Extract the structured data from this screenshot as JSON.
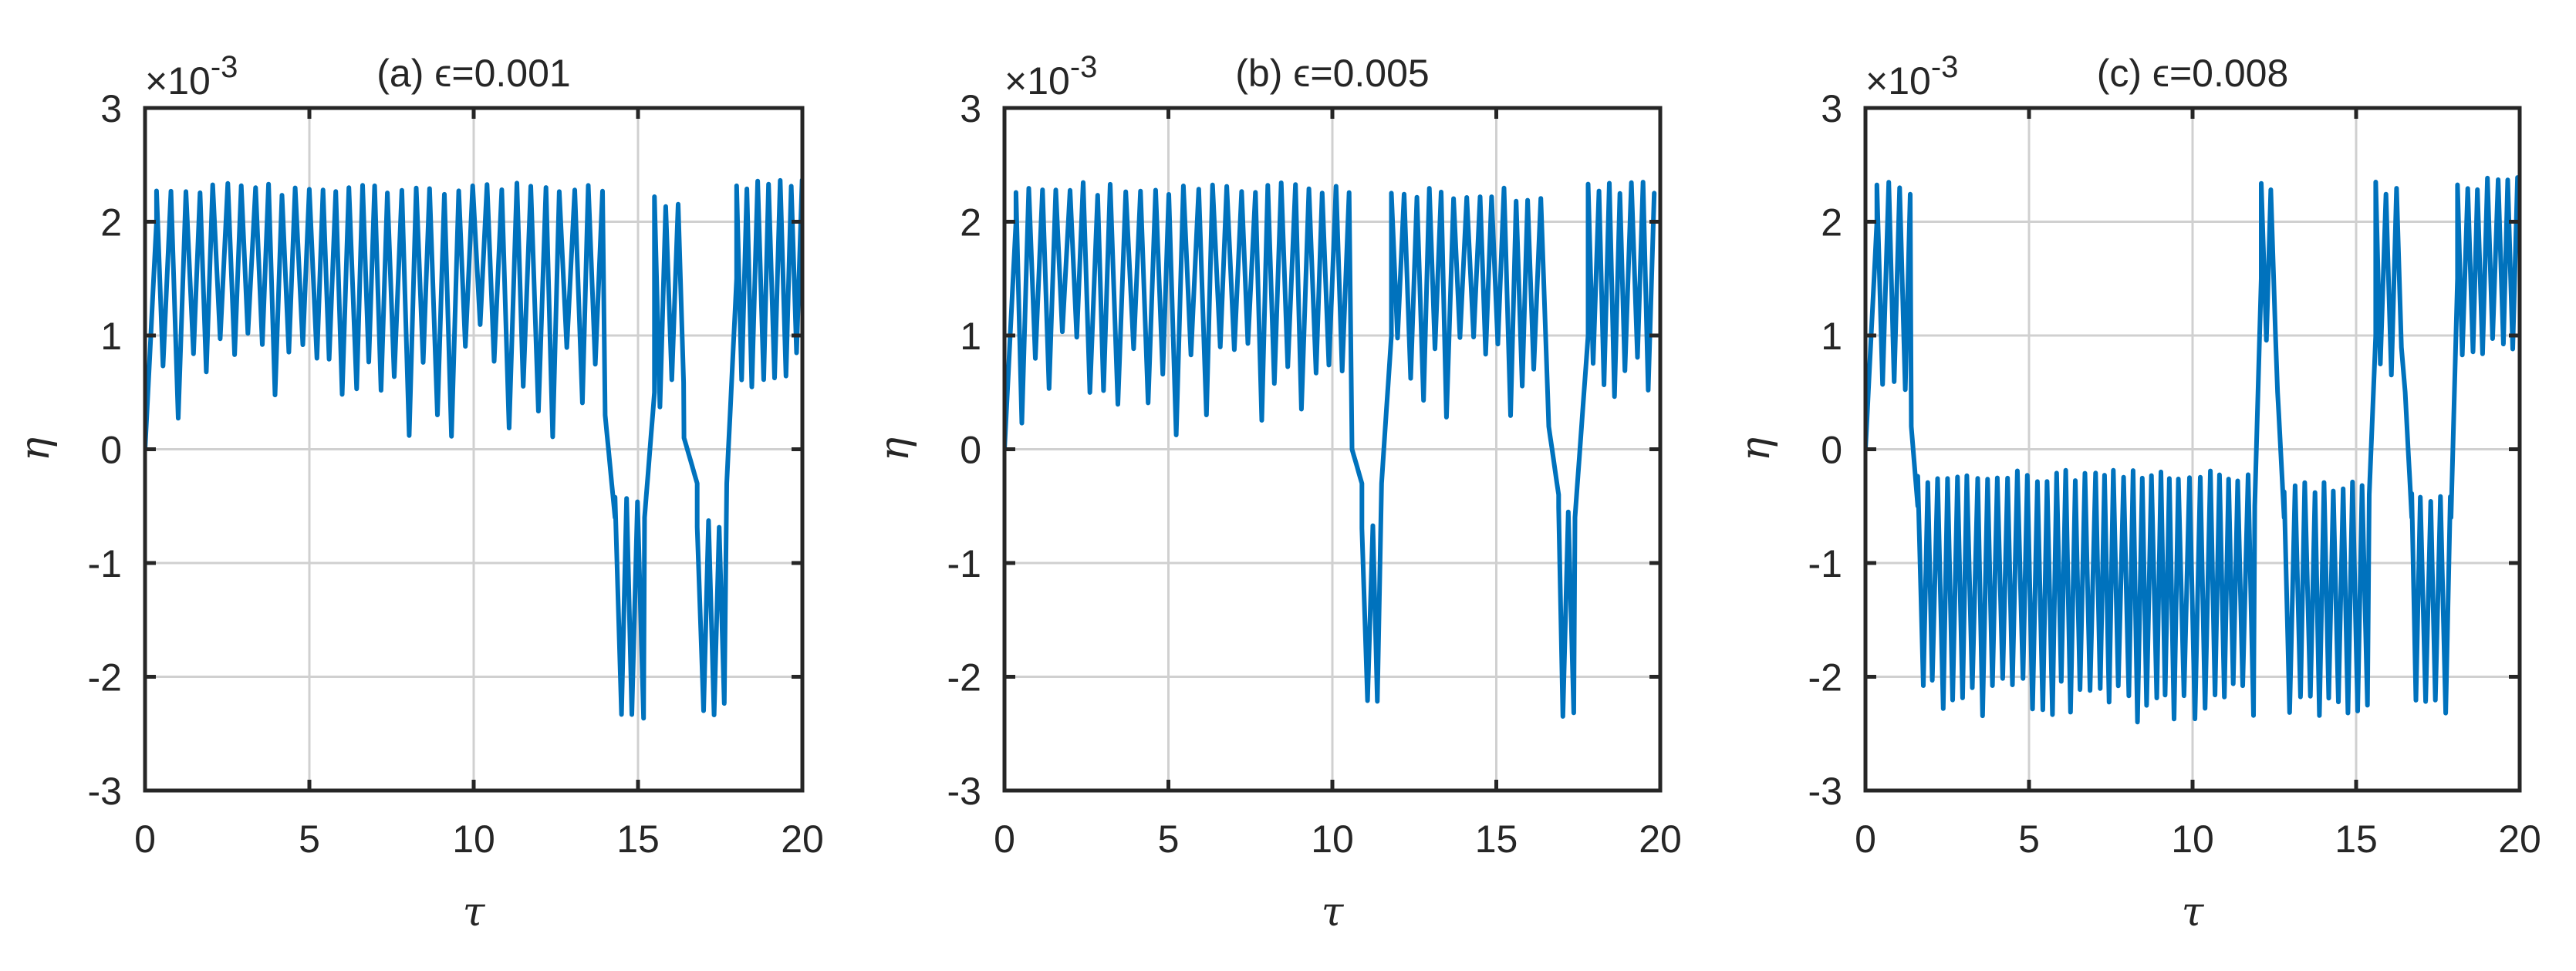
{
  "chart_data": [
    {
      "type": "line",
      "title": "(a) ϵ=0.001",
      "xlabel": "τ",
      "ylabel": "η",
      "y_exponent": "×10",
      "y_exponent_power": "-3",
      "xlim": [
        0,
        20
      ],
      "ylim": [
        -3,
        3
      ],
      "xticks": [
        "0",
        "5",
        "10",
        "15",
        "20"
      ],
      "yticks": [
        "3",
        "2",
        "1",
        "0",
        "-1",
        "-2",
        "-3"
      ],
      "grid": true,
      "color": "#0072BD",
      "segments": [
        {
          "t0": 0,
          "t1": 0.35,
          "mode": "rise",
          "from": 0,
          "to": 2.0
        },
        {
          "t0": 0.35,
          "t1": 14.0,
          "mode": "osc",
          "center": 1.3,
          "period": 0.42,
          "amp_max": 2.35,
          "amp_min_range": [
            0.1,
            1.1
          ]
        },
        {
          "t0": 14.0,
          "t1": 14.3,
          "mode": "fall",
          "from": 0.3,
          "to": -0.6
        },
        {
          "t0": 14.3,
          "t1": 15.2,
          "mode": "osc",
          "center": -1.5,
          "period": 0.35,
          "amp_max": -0.5,
          "amp_min_range": [
            -2.4,
            -2.3
          ]
        },
        {
          "t0": 15.2,
          "t1": 15.5,
          "mode": "rise",
          "from": -0.6,
          "to": 0.5
        },
        {
          "t0": 15.5,
          "t1": 16.4,
          "mode": "osc",
          "center": 1.2,
          "period": 0.35,
          "amp_max": 2.25,
          "amp_min_range": [
            0.3,
            0.9
          ]
        },
        {
          "t0": 16.4,
          "t1": 16.8,
          "mode": "fall",
          "from": 0.1,
          "to": -0.3
        },
        {
          "t0": 16.8,
          "t1": 17.7,
          "mode": "osc",
          "center": -1.5,
          "period": 0.35,
          "amp_max": -0.7,
          "amp_min_range": [
            -2.35,
            -2.2
          ]
        },
        {
          "t0": 17.7,
          "t1": 18.0,
          "mode": "rise",
          "from": -0.3,
          "to": 1.5
        },
        {
          "t0": 18.0,
          "t1": 20.0,
          "mode": "osc",
          "center": 1.4,
          "period": 0.32,
          "amp_max": 2.4,
          "amp_min_range": [
            0.5,
            1.0
          ]
        }
      ]
    },
    {
      "type": "line",
      "title": "(b) ϵ=0.005",
      "xlabel": "τ",
      "ylabel": "η",
      "y_exponent": "×10",
      "y_exponent_power": "-3",
      "xlim": [
        0,
        20
      ],
      "ylim": [
        -3,
        3
      ],
      "xticks": [
        "0",
        "5",
        "10",
        "15",
        "20"
      ],
      "yticks": [
        "3",
        "2",
        "1",
        "0",
        "-1",
        "-2",
        "-3"
      ],
      "grid": true,
      "color": "#0072BD",
      "segments": [
        {
          "t0": 0,
          "t1": 0.35,
          "mode": "rise",
          "from": 0,
          "to": 2.0
        },
        {
          "t0": 0.35,
          "t1": 10.6,
          "mode": "osc",
          "center": 1.3,
          "period": 0.42,
          "amp_max": 2.35,
          "amp_min_range": [
            0.1,
            1.1
          ]
        },
        {
          "t0": 10.6,
          "t1": 10.9,
          "mode": "fall",
          "from": 0.0,
          "to": -0.3
        },
        {
          "t0": 10.9,
          "t1": 11.5,
          "mode": "osc",
          "center": -1.2,
          "period": 0.3,
          "amp_max": -0.7,
          "amp_min_range": [
            -2.25,
            -2.2
          ]
        },
        {
          "t0": 11.5,
          "t1": 11.8,
          "mode": "rise",
          "from": -0.3,
          "to": 1.0
        },
        {
          "t0": 11.8,
          "t1": 16.6,
          "mode": "osc",
          "center": 1.3,
          "period": 0.38,
          "amp_max": 2.3,
          "amp_min_range": [
            0.2,
            1.0
          ]
        },
        {
          "t0": 16.6,
          "t1": 16.9,
          "mode": "fall",
          "from": 0.2,
          "to": -0.4
        },
        {
          "t0": 16.9,
          "t1": 17.4,
          "mode": "osc",
          "center": -1.2,
          "period": 0.3,
          "amp_max": -0.6,
          "amp_min_range": [
            -2.35,
            -2.3
          ]
        },
        {
          "t0": 17.4,
          "t1": 17.8,
          "mode": "rise",
          "from": -0.6,
          "to": 1.0
        },
        {
          "t0": 17.8,
          "t1": 20.0,
          "mode": "osc",
          "center": 1.4,
          "period": 0.35,
          "amp_max": 2.35,
          "amp_min_range": [
            0.4,
            1.0
          ]
        }
      ]
    },
    {
      "type": "line",
      "title": "(c) ϵ=0.008",
      "xlabel": "τ",
      "ylabel": "η",
      "y_exponent": "×10",
      "y_exponent_power": "-3",
      "xlim": [
        0,
        20
      ],
      "ylim": [
        -3,
        3
      ],
      "xticks": [
        "0",
        "5",
        "10",
        "15",
        "20"
      ],
      "yticks": [
        "3",
        "2",
        "1",
        "0",
        "-1",
        "-2",
        "-3"
      ],
      "grid": true,
      "color": "#0072BD",
      "segments": [
        {
          "t0": 0,
          "t1": 0.35,
          "mode": "rise",
          "from": 0,
          "to": 2.0
        },
        {
          "t0": 0.35,
          "t1": 1.4,
          "mode": "osc",
          "center": 1.3,
          "period": 0.35,
          "amp_max": 2.35,
          "amp_min_range": [
            0.5,
            0.8
          ]
        },
        {
          "t0": 1.4,
          "t1": 1.6,
          "mode": "fall",
          "from": 0.2,
          "to": -0.5
        },
        {
          "t0": 1.6,
          "t1": 11.9,
          "mode": "osc",
          "center": -1.5,
          "period": 0.3,
          "amp_max": -0.3,
          "amp_min_range": [
            -2.4,
            -2.0
          ]
        },
        {
          "t0": 11.9,
          "t1": 12.1,
          "mode": "rise",
          "from": -0.5,
          "to": 1.5
        },
        {
          "t0": 12.1,
          "t1": 12.6,
          "mode": "osc",
          "center": 1.5,
          "period": 0.3,
          "amp_max": 2.35,
          "amp_min_range": [
            0.8,
            1.0
          ]
        },
        {
          "t0": 12.6,
          "t1": 12.8,
          "mode": "fall",
          "from": 0.5,
          "to": -0.6
        },
        {
          "t0": 12.8,
          "t1": 15.4,
          "mode": "osc",
          "center": -1.5,
          "period": 0.3,
          "amp_max": -0.4,
          "amp_min_range": [
            -2.4,
            -2.1
          ]
        },
        {
          "t0": 15.4,
          "t1": 15.6,
          "mode": "rise",
          "from": -0.4,
          "to": 1.0
        },
        {
          "t0": 15.6,
          "t1": 16.5,
          "mode": "osc",
          "center": 1.3,
          "period": 0.3,
          "amp_max": 2.35,
          "amp_min_range": [
            0.6,
            0.9
          ]
        },
        {
          "t0": 16.5,
          "t1": 16.7,
          "mode": "fall",
          "from": 0.5,
          "to": -0.6
        },
        {
          "t0": 16.7,
          "t1": 17.9,
          "mode": "osc",
          "center": -1.5,
          "period": 0.3,
          "amp_max": -0.5,
          "amp_min_range": [
            -2.35,
            -2.2
          ]
        },
        {
          "t0": 17.9,
          "t1": 18.1,
          "mode": "rise",
          "from": -0.6,
          "to": 1.5
        },
        {
          "t0": 18.1,
          "t1": 20.0,
          "mode": "osc",
          "center": 1.5,
          "period": 0.3,
          "amp_max": 2.4,
          "amp_min_range": [
            0.7,
            1.0
          ]
        }
      ]
    }
  ]
}
